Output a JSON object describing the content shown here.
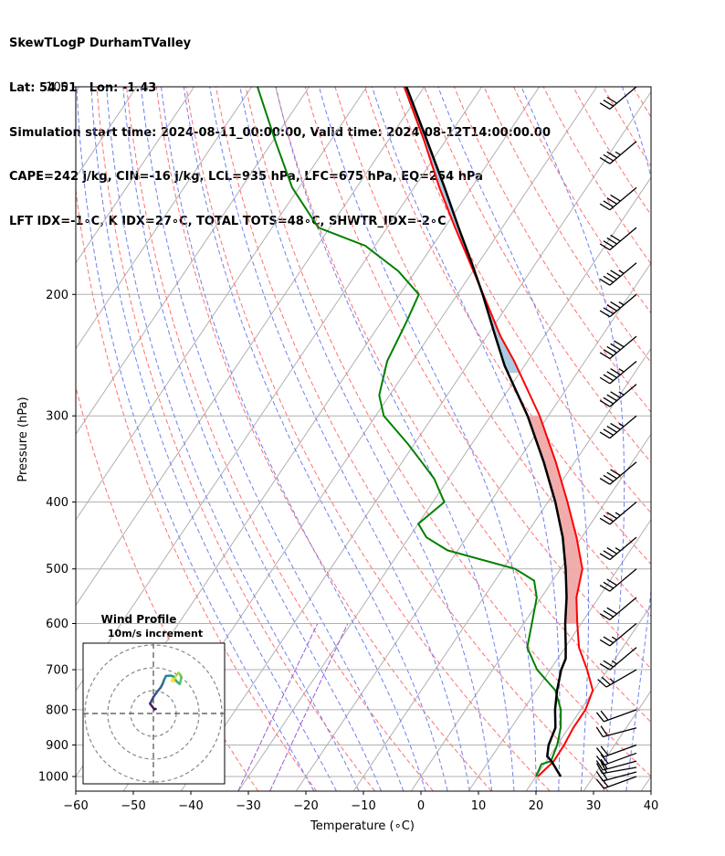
{
  "header": {
    "line1": "SkewTLogP DurhamTValley",
    "line2": "Lat: 54.51   Lon: -1.43",
    "line3": "Simulation start time: 2024-08-11_00:00:00, Valid time: 2024-08-12T14:00:00.00",
    "line4": "CAPE=242 j/kg, CIN=-16 j/kg, LCL=935 hPa, LFC=675 hPa, EQ=254 hPa",
    "line5": "LFT IDX=-1∘C, K IDX=27∘C, TOTAL TOTS=48∘C, SHWTR_IDX=-2∘C"
  },
  "colors": {
    "temperature": "#ff0000",
    "dewpoint": "#008000",
    "parcel": "#000000",
    "cape_fill": "#a6c8e0",
    "cin_fill": "#f0a8a8",
    "isotherm": "#b0b0b0",
    "dry_adiabat": "#ff7070",
    "moist_adiabat": "#6f7ff0",
    "mixing_ratio": "#9b59d0"
  },
  "chart_data": {
    "type": "line",
    "title": "",
    "xlabel": "Temperature (∘C)",
    "ylabel": "Pressure (hPa)",
    "xlim": [
      -60,
      40
    ],
    "ylim": [
      1050,
      100
    ],
    "x_ticks": [
      "−60",
      "−50",
      "−40",
      "−30",
      "−20",
      "−10",
      "0",
      "10",
      "20",
      "30",
      "40"
    ],
    "y_ticks": [
      "100",
      "200",
      "300",
      "400",
      "500",
      "600",
      "700",
      "800",
      "900",
      "1000"
    ],
    "y_scale": "log",
    "grid": true,
    "series": [
      {
        "key": "temperature",
        "pressure": [
          1000,
          950,
          900,
          850,
          800,
          750,
          700,
          650,
          600,
          550,
          500,
          450,
          400,
          350,
          300,
          250,
          230,
          200,
          180,
          160,
          140,
          120,
          100
        ],
        "values": [
          20.3,
          21.3,
          21.2,
          20.8,
          20.8,
          19.8,
          16.4,
          12.4,
          9.3,
          6.1,
          3.8,
          -0.9,
          -6.6,
          -13.3,
          -21.5,
          -32.3,
          -37.6,
          -45.5,
          -51.5,
          -58.2,
          -65.6,
          -73.6,
          -83.5
        ]
      },
      {
        "key": "dewpoint",
        "pressure": [
          1000,
          960,
          950,
          900,
          850,
          800,
          750,
          700,
          650,
          600,
          550,
          520,
          500,
          470,
          450,
          430,
          400,
          370,
          350,
          330,
          300,
          280,
          250,
          220,
          200,
          185,
          170,
          160,
          140,
          120,
          100
        ],
        "values": [
          20,
          19.5,
          20.8,
          20.0,
          18.6,
          16.5,
          13.3,
          7.7,
          3.4,
          1.4,
          -0.8,
          -3.2,
          -7.9,
          -21.8,
          -27.0,
          -30.0,
          -28.0,
          -32.5,
          -36.6,
          -41.0,
          -48.6,
          -51.8,
          -54.4,
          -55.6,
          -56.7,
          -63.0,
          -71.7,
          -82.0,
          -91.2,
          -99.5,
          -109
        ]
      },
      {
        "key": "parcel",
        "pressure": [
          1000,
          950,
          935,
          900,
          850,
          800,
          750,
          700,
          675,
          650,
          600,
          550,
          500,
          450,
          400,
          350,
          300,
          254,
          230,
          200,
          180,
          160,
          140,
          120,
          100
        ],
        "values": [
          24.3,
          20.9,
          19.6,
          18.5,
          17.7,
          15.5,
          13.6,
          11.9,
          11.4,
          10.1,
          7.2,
          4.4,
          0.9,
          -3.3,
          -8.7,
          -15.4,
          -23.6,
          -33.4,
          -38.5,
          -45.6,
          -51.2,
          -57.6,
          -64.7,
          -73.1,
          -83.1
        ]
      }
    ],
    "cape_shading": "blue between parcel and temperature aloft",
    "cin_shading": "red between temperature and parcel mid-levels",
    "wind_barbs": {
      "pressure": [
        1000,
        985,
        970,
        950,
        925,
        900,
        850,
        800,
        700,
        650,
        600,
        550,
        500,
        450,
        400,
        350,
        300,
        270,
        250,
        230,
        200,
        180,
        160,
        140,
        120,
        100
      ],
      "speed_kt": [
        20,
        20,
        20,
        20,
        20,
        20,
        20,
        20,
        25,
        25,
        25,
        30,
        30,
        35,
        35,
        40,
        45,
        45,
        45,
        50,
        45,
        45,
        40,
        40,
        35,
        30
      ],
      "dir_deg": [
        250,
        255,
        260,
        255,
        250,
        250,
        255,
        250,
        240,
        230,
        230,
        230,
        230,
        230,
        230,
        230,
        230,
        230,
        230,
        230,
        230,
        230,
        230,
        230,
        230,
        230
      ]
    },
    "hodograph": {
      "title": "Wind Profile",
      "subtitle": "10m/s increment",
      "ring_step_ms": 10,
      "u": [
        1.0,
        0.5,
        -0.5,
        -1.5,
        -1.2,
        0.0,
        1.5,
        3.2,
        4.0,
        4.8,
        5.5,
        7.5,
        8.8,
        10.1,
        11.5,
        11.9,
        12.2,
        11.6,
        11.0,
        9.8,
        8.8,
        8.0,
        8.4
      ],
      "v": [
        2.0,
        1.8,
        3.0,
        4.3,
        4.8,
        7.2,
        9.3,
        11.4,
        12.9,
        15.0,
        16.4,
        16.6,
        16.2,
        14.1,
        12.9,
        14.0,
        16.1,
        17.2,
        17.8,
        16.3,
        14.1,
        14.3,
        15.3
      ]
    }
  }
}
